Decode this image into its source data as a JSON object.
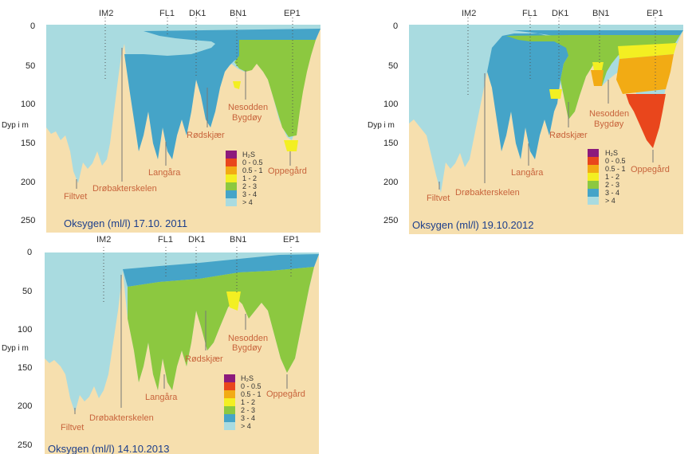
{
  "colors": {
    "sediment": "#f6dfae",
    "above4": "#a9dbe0",
    "c3to4": "#45a4c8",
    "c2to3": "#8cc840",
    "c1to2": "#f3ef22",
    "c05to1": "#f2ab14",
    "c0to05": "#e9461c",
    "h2s": "#8c1a7c",
    "place": "#c8643c",
    "caption": "#1d3f8c"
  },
  "chart_data": [
    {
      "type": "area",
      "caption": "Oksygen (ml/l) 17.10. 2011",
      "ylabel": "Dyp i m",
      "yticks": [
        "0",
        "50",
        "100",
        "150",
        "200",
        "250"
      ],
      "ylim": [
        0,
        260
      ],
      "stations": [
        "IM2",
        "FL1",
        "DK1",
        "BN1",
        "EP1"
      ],
      "places": [
        "Filtvet",
        "Drøbakterskelen",
        "Langåra",
        "Rødskjær",
        "Nesodden",
        "Bygdøy",
        "Oppegård"
      ],
      "legend": {
        "title": "H₂S",
        "items": [
          {
            "label": "0 - 0.5",
            "color_key": "c0to05"
          },
          {
            "label": "0.5 - 1",
            "color_key": "c05to1"
          },
          {
            "label": "1 - 2",
            "color_key": "c1to2"
          },
          {
            "label": "2 - 3",
            "color_key": "c2to3"
          },
          {
            "label": "3 - 4",
            "color_key": "c3to4"
          },
          {
            "label": "> 4",
            "color_key": "above4"
          }
        ]
      }
    },
    {
      "type": "area",
      "caption": "Oksygen (ml/l) 19.10.2012",
      "ylabel": "Dyp i m",
      "yticks": [
        "0",
        "50",
        "100",
        "150",
        "200",
        "250"
      ],
      "ylim": [
        0,
        260
      ],
      "stations": [
        "IM2",
        "FL1",
        "DK1",
        "BN1",
        "EP1"
      ],
      "places": [
        "Filtvet",
        "Drøbakterskelen",
        "Langåra",
        "Rødskjær",
        "Nesodden",
        "Bygdøy",
        "Oppegård"
      ],
      "legend": {
        "title": "H₂S",
        "items": [
          {
            "label": "0 - 0.5",
            "color_key": "c0to05"
          },
          {
            "label": "0.5 - 1",
            "color_key": "c05to1"
          },
          {
            "label": "1 - 2",
            "color_key": "c1to2"
          },
          {
            "label": "2 - 3",
            "color_key": "c2to3"
          },
          {
            "label": "3 - 4",
            "color_key": "c3to4"
          },
          {
            "label": "> 4",
            "color_key": "above4"
          }
        ]
      }
    },
    {
      "type": "area",
      "caption": "Oksygen (ml/l) 14.10.2013",
      "ylabel": "Dyp i m",
      "yticks": [
        "0",
        "50",
        "100",
        "150",
        "200",
        "250"
      ],
      "ylim": [
        0,
        260
      ],
      "stations": [
        "IM2",
        "FL1",
        "DK1",
        "BN1",
        "EP1"
      ],
      "places": [
        "Filtvet",
        "Drøbakterskelen",
        "Langåra",
        "Rødskjær",
        "Nesodden",
        "Bygdøy",
        "Oppegård"
      ],
      "legend": {
        "title": "H₂S",
        "items": [
          {
            "label": "0 - 0.5",
            "color_key": "c0to05"
          },
          {
            "label": "0.5 - 1",
            "color_key": "c05to1"
          },
          {
            "label": "1 - 2",
            "color_key": "c1to2"
          },
          {
            "label": "2 - 3",
            "color_key": "c2to3"
          },
          {
            "label": "3 - 4",
            "color_key": "c3to4"
          },
          {
            "label": "> 4",
            "color_key": "above4"
          }
        ]
      }
    }
  ]
}
